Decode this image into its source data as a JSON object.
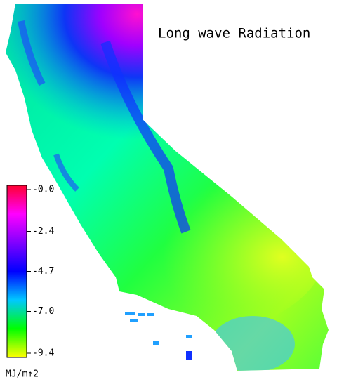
{
  "title": "Long wave Radiation",
  "colorbar": {
    "lim": [
      0,
      -9.4
    ],
    "ticks": [
      {
        "value": 0,
        "label": "-0.0"
      },
      -2.4,
      -4.7,
      {
        "value": -7,
        "label": "-7.0"
      },
      -9.4
    ],
    "unit": "MJ/m↑2",
    "colors": [
      "#ff0030",
      "#ff00ff",
      "#8000ff",
      "#0000ff",
      "#00c8ff",
      "#00ff00",
      "#ffff00"
    ]
  }
}
